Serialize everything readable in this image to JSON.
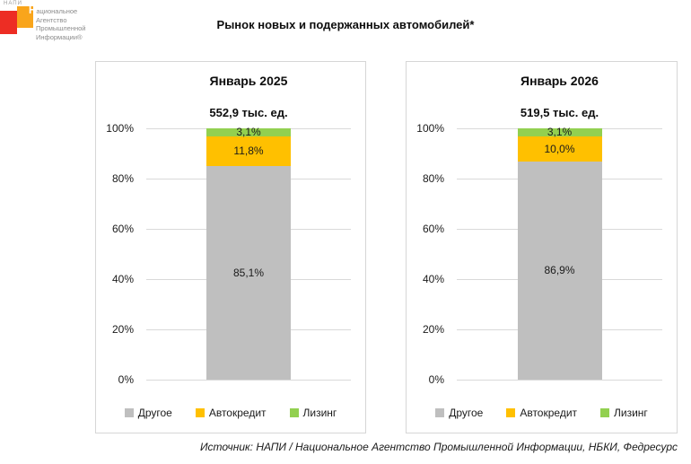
{
  "logo": {
    "abbr": "НАПИ",
    "lines": [
      "Национальное",
      "Агентство",
      "Промышленной",
      "Информации®"
    ]
  },
  "page_title": "Рынок новых и подержанных автомобилей*",
  "source_note": "Источник: НАПИ / Национальное Агентство Промышленной Информации, НБКИ, Федресурс",
  "colors": {
    "drugoe": "#BFBFBF",
    "avtokredit": "#FFC000",
    "lizing": "#92D050",
    "gridline": "#D9D9D9",
    "panel_border": "#D6D6D6",
    "logo_red": "#ED2D24",
    "logo_orange": "#F9A51B"
  },
  "chart_data": [
    {
      "type": "bar",
      "stacked": true,
      "title": "Январь 2025",
      "total_label": "552,9 тыс. ед.",
      "categories": [
        "Январь 2025"
      ],
      "series": [
        {
          "name": "Другое",
          "key": "drugoe",
          "values": [
            85.1
          ],
          "label": "85,1%",
          "color": "#BFBFBF"
        },
        {
          "name": "Автокредит",
          "key": "avtokredit",
          "values": [
            11.8
          ],
          "label": "11,8%",
          "color": "#FFC000"
        },
        {
          "name": "Лизинг",
          "key": "lizing",
          "values": [
            3.1
          ],
          "label": "3,1%",
          "color": "#92D050"
        }
      ],
      "xlabel": "",
      "ylabel": "",
      "ylim": [
        0,
        100
      ],
      "yticks": [
        "0%",
        "20%",
        "40%",
        "60%",
        "80%",
        "100%"
      ],
      "grid": true,
      "legend_position": "bottom"
    },
    {
      "type": "bar",
      "stacked": true,
      "title": "Январь 2026",
      "total_label": "519,5 тыс. ед.",
      "categories": [
        "Январь 2026"
      ],
      "series": [
        {
          "name": "Другое",
          "key": "drugoe",
          "values": [
            86.9
          ],
          "label": "86,9%",
          "color": "#BFBFBF"
        },
        {
          "name": "Автокредит",
          "key": "avtokredit",
          "values": [
            10.0
          ],
          "label": "10,0%",
          "color": "#FFC000"
        },
        {
          "name": "Лизинг",
          "key": "lizing",
          "values": [
            3.1
          ],
          "label": "3,1%",
          "color": "#92D050"
        }
      ],
      "xlabel": "",
      "ylabel": "",
      "ylim": [
        0,
        100
      ],
      "yticks": [
        "0%",
        "20%",
        "40%",
        "60%",
        "80%",
        "100%"
      ],
      "grid": true,
      "legend_position": "bottom"
    }
  ]
}
